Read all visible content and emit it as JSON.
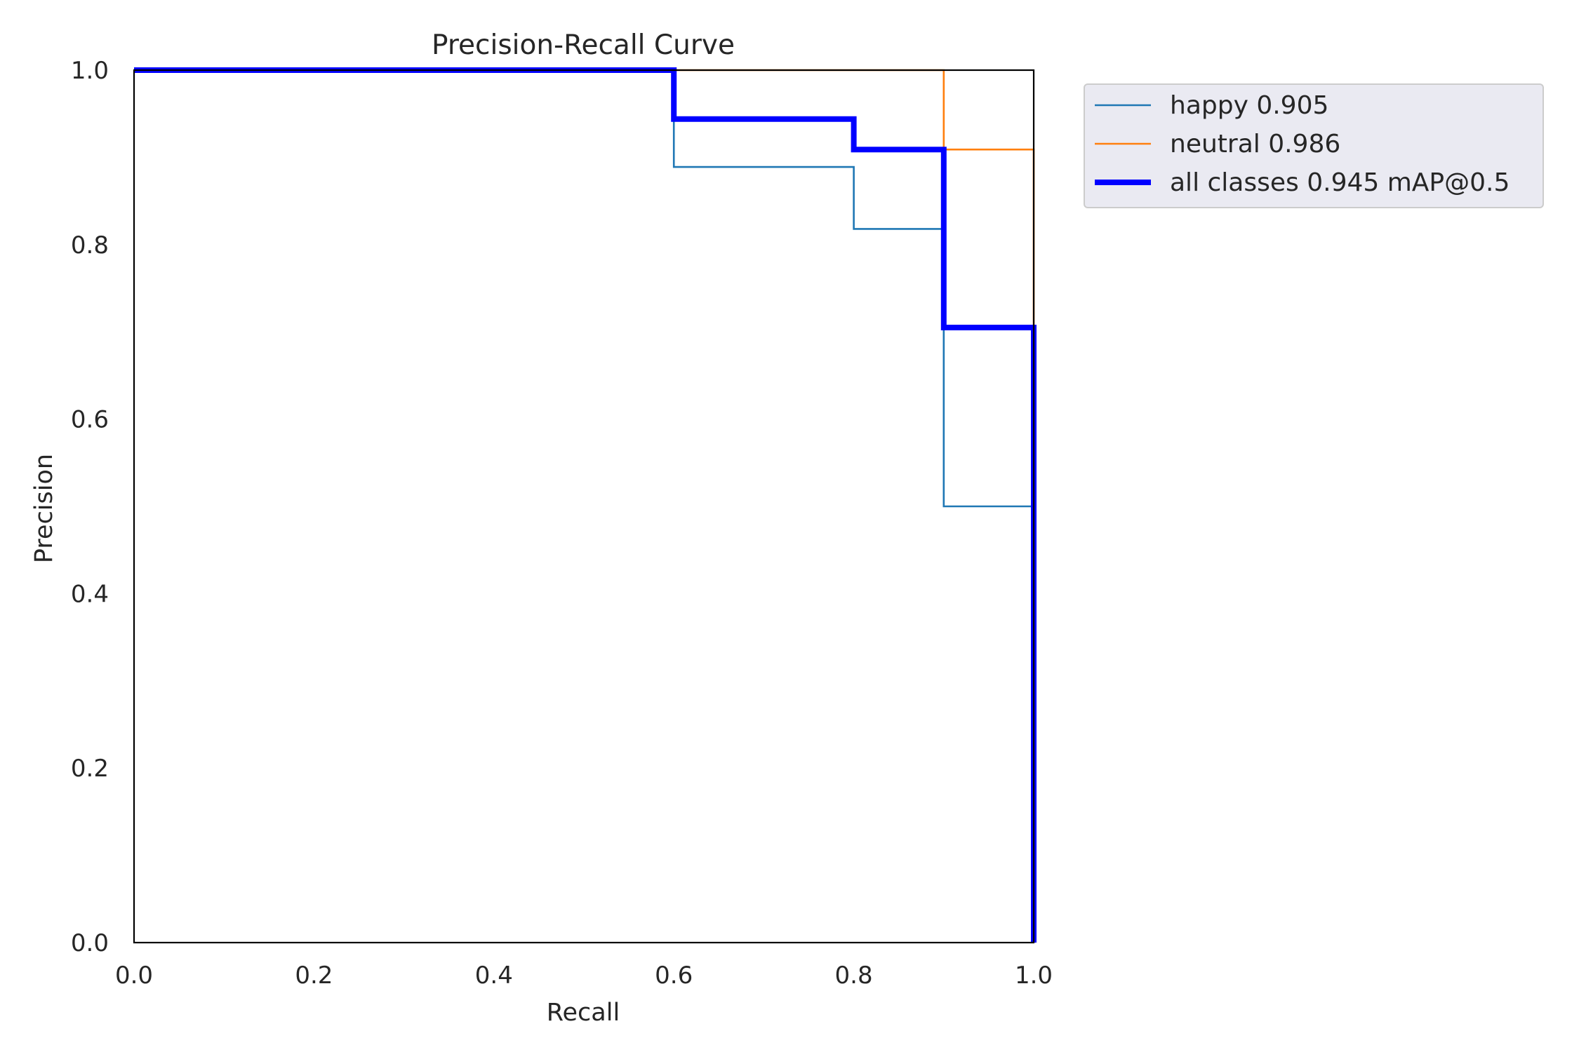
{
  "chart_data": {
    "type": "line",
    "title": "Precision-Recall Curve",
    "xlabel": "Recall",
    "ylabel": "Precision",
    "xlim": [
      0,
      1
    ],
    "ylim": [
      0,
      1
    ],
    "xticks": [
      "0.0",
      "0.2",
      "0.4",
      "0.6",
      "0.8",
      "1.0"
    ],
    "yticks": [
      "0.0",
      "0.2",
      "0.4",
      "0.6",
      "0.8",
      "1.0"
    ],
    "grid": false,
    "legend_position": "outside-top-right",
    "series": [
      {
        "name": "happy 0.905",
        "color": "#1f77b4",
        "x": [
          0.0,
          0.6,
          0.6,
          0.8,
          0.8,
          0.9,
          0.9,
          1.0,
          1.0
        ],
        "y": [
          1.0,
          1.0,
          0.889,
          0.889,
          0.818,
          0.818,
          0.5,
          0.5,
          0.0
        ]
      },
      {
        "name": "neutral 0.986",
        "color": "#ff7f0e",
        "x": [
          0.0,
          0.9,
          0.9,
          1.0,
          1.0
        ],
        "y": [
          1.0,
          1.0,
          0.909,
          0.909,
          0.0
        ]
      },
      {
        "name": "all classes 0.945 mAP@0.5",
        "color": "#0000ff",
        "thick": true,
        "x": [
          0.0,
          0.6,
          0.6,
          0.8,
          0.8,
          0.9,
          0.9,
          1.0,
          1.0
        ],
        "y": [
          1.0,
          1.0,
          0.944,
          0.944,
          0.909,
          0.909,
          0.705,
          0.705,
          0.0
        ]
      }
    ]
  }
}
